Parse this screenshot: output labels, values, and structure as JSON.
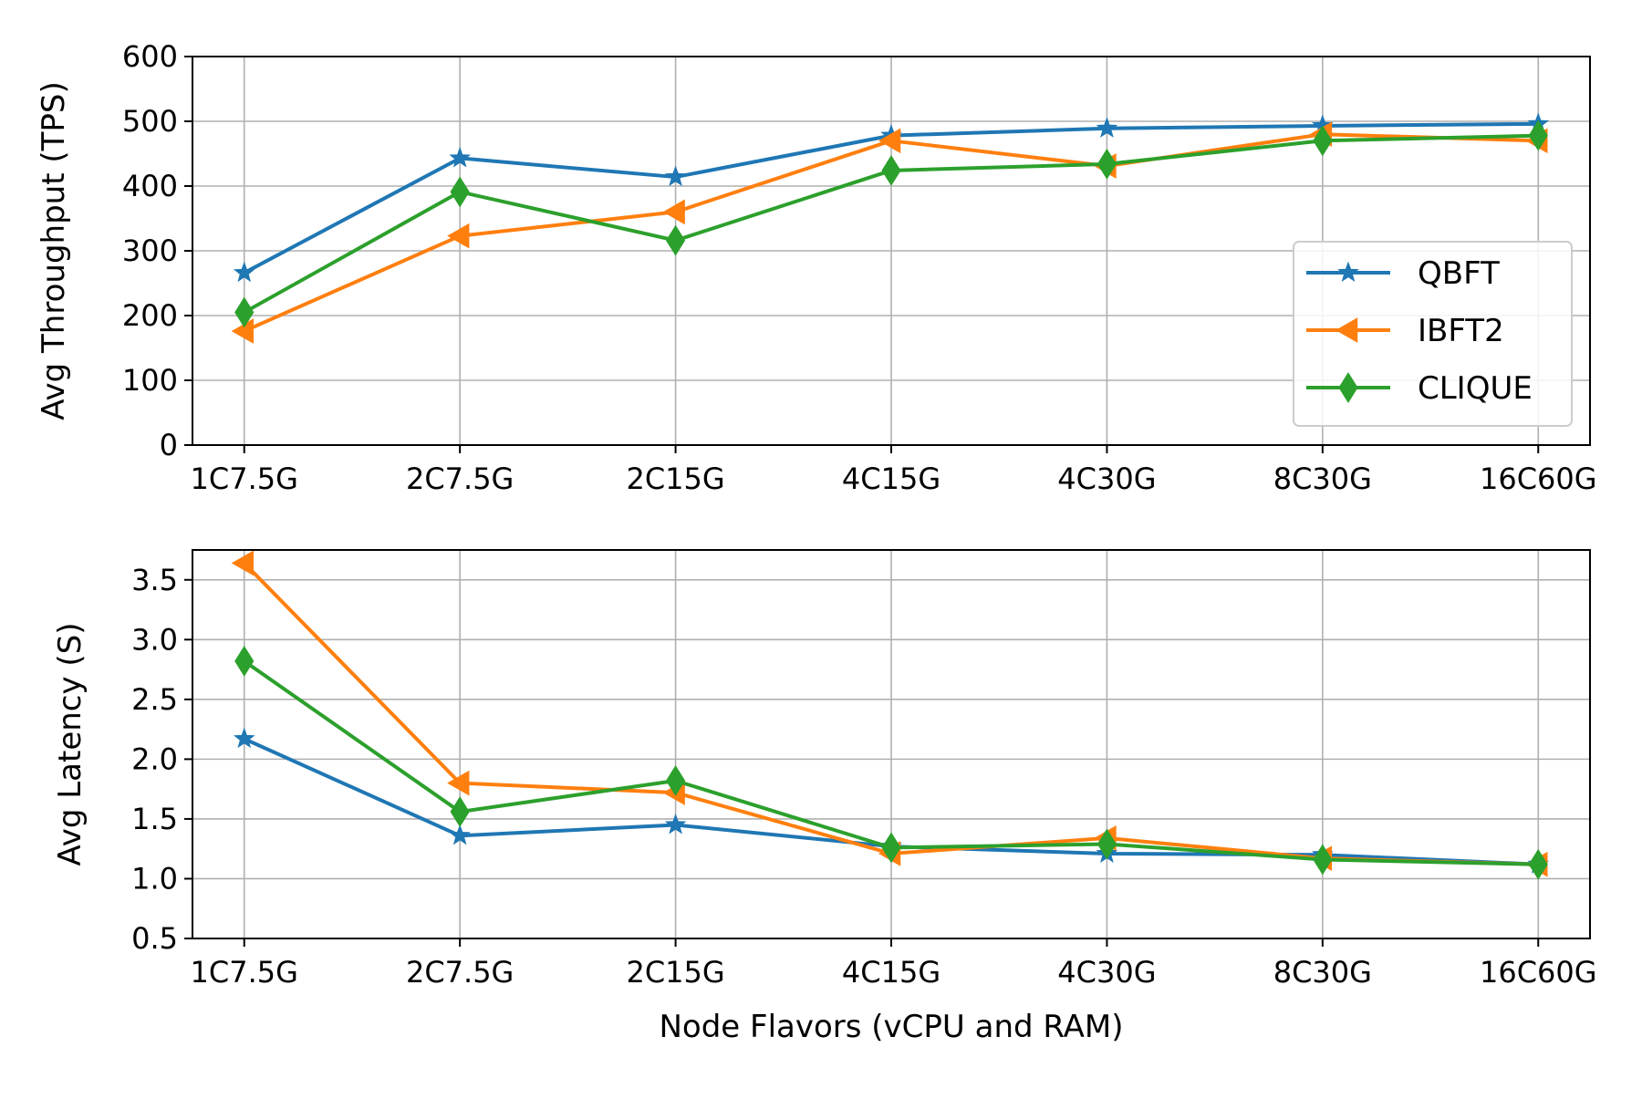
{
  "colors": {
    "qbft": "#1f77b4",
    "ibft2": "#ff7f0e",
    "clique": "#2ca02c",
    "grid": "#b0b0b0",
    "axes": "#000000"
  },
  "chart_data": [
    {
      "type": "line",
      "categories": [
        "1C7.5G",
        "2C7.5G",
        "2C15G",
        "4C15G",
        "4C30G",
        "8C30G",
        "16C60G"
      ],
      "xlabel": "",
      "ylabel": "Avg Throughput (TPS)",
      "ylim": [
        0,
        600
      ],
      "yticks": [
        "0",
        "100",
        "200",
        "300",
        "400",
        "500",
        "600"
      ],
      "grid": true,
      "legend_position": "lower-right",
      "series": [
        {
          "name": "QBFT",
          "marker": "star",
          "values": [
            266,
            443,
            414,
            478,
            489,
            493,
            496
          ]
        },
        {
          "name": "IBFT2",
          "marker": "triangle-left",
          "values": [
            176,
            323,
            360,
            470,
            431,
            480,
            470
          ]
        },
        {
          "name": "CLIQUE",
          "marker": "diamond",
          "values": [
            205,
            391,
            316,
            424,
            434,
            470,
            478
          ]
        }
      ]
    },
    {
      "type": "line",
      "categories": [
        "1C7.5G",
        "2C7.5G",
        "2C15G",
        "4C15G",
        "4C30G",
        "8C30G",
        "16C60G"
      ],
      "xlabel": "Node Flavors (vCPU and RAM)",
      "ylabel": "Avg Latency (S)",
      "ylim": [
        0.5,
        3.75
      ],
      "yticks": [
        "0.5",
        "1.0",
        "1.5",
        "2.0",
        "2.5",
        "3.0",
        "3.5"
      ],
      "grid": true,
      "series": [
        {
          "name": "QBFT",
          "marker": "star",
          "values": [
            2.17,
            1.36,
            1.45,
            1.27,
            1.21,
            1.2,
            1.12
          ]
        },
        {
          "name": "IBFT2",
          "marker": "triangle-left",
          "values": [
            3.64,
            1.8,
            1.72,
            1.21,
            1.34,
            1.17,
            1.12
          ]
        },
        {
          "name": "CLIQUE",
          "marker": "diamond",
          "values": [
            2.82,
            1.56,
            1.82,
            1.26,
            1.29,
            1.16,
            1.12
          ]
        }
      ]
    }
  ]
}
